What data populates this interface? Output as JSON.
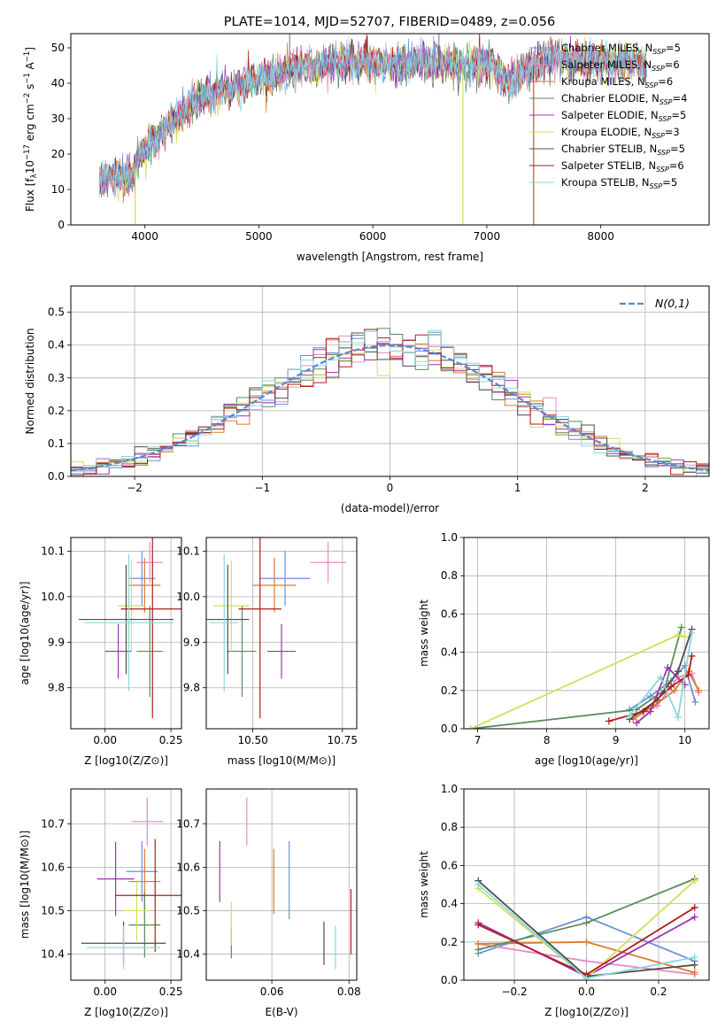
{
  "colors": [
    "#6a8fd6",
    "#e68cc2",
    "#df7a2b",
    "#5a8a5a",
    "#9b33b0",
    "#cfe05a",
    "#4d4d4d",
    "#b01c1c",
    "#8ad6dd"
  ],
  "legend_labels": {
    "main": [
      "Chabrier MILES, N",
      "Salpeter MILES, N",
      "Kroupa MILES, N",
      "Chabrier ELODIE, N",
      "Salpeter ELODIE, N",
      "Kroupa ELODIE, N",
      "Chabrier STELIB, N",
      "Salpeter STELIB, N",
      "Kroupa STELIB, N"
    ],
    "sub": [
      "SSP",
      "SSP",
      "SSP",
      "SSP",
      "SSP",
      "SSP",
      "SSP",
      "SSP",
      "SSP"
    ],
    "tail": [
      "=5",
      "=6",
      "=6",
      "=4",
      "=5",
      "=3",
      "=5",
      "=6",
      "=5"
    ]
  },
  "chart_data": [
    {
      "id": "spectrum",
      "type": "line",
      "title": "PLATE=1014, MJD=52707, FIBERID=0489, z=0.056",
      "xlabel": "wavelength [Angstrom, rest frame]",
      "ylabel_parts": [
        "Flux [f",
        "λ",
        "10",
        "−17",
        " erg cm",
        "−2",
        " s",
        "−1",
        " A",
        "−1",
        "]"
      ],
      "xlim": [
        3350,
        8950
      ],
      "ylim": [
        0,
        54
      ],
      "xticks": [
        4000,
        5000,
        6000,
        7000,
        8000
      ],
      "yticks": [
        0,
        10,
        20,
        30,
        40,
        50
      ],
      "wavelength_range": [
        3600,
        8400
      ],
      "flux_shape": [
        [
          3600,
          12
        ],
        [
          3700,
          14
        ],
        [
          3800,
          13
        ],
        [
          3900,
          14
        ],
        [
          3950,
          20
        ],
        [
          4000,
          21
        ],
        [
          4100,
          25
        ],
        [
          4200,
          28
        ],
        [
          4300,
          30
        ],
        [
          4400,
          34
        ],
        [
          4500,
          36
        ],
        [
          4600,
          37
        ],
        [
          4800,
          39
        ],
        [
          5000,
          41
        ],
        [
          5200,
          43
        ],
        [
          5400,
          45
        ],
        [
          5600,
          45
        ],
        [
          5800,
          46
        ],
        [
          6000,
          46
        ],
        [
          6200,
          45
        ],
        [
          6400,
          46
        ],
        [
          6600,
          46
        ],
        [
          6800,
          45
        ],
        [
          7000,
          46
        ],
        [
          7200,
          40
        ],
        [
          7400,
          45
        ],
        [
          7600,
          47
        ],
        [
          7800,
          46
        ],
        [
          8000,
          46
        ],
        [
          8200,
          46
        ],
        [
          8400,
          45
        ]
      ]
    },
    {
      "id": "residuals",
      "type": "histogram",
      "xlabel": "(data-model)/error",
      "ylabel": "Normed distribution",
      "xlim": [
        -2.5,
        2.5
      ],
      "ylim": [
        0,
        0.58
      ],
      "xticks": [
        -2,
        -1,
        0,
        1,
        2
      ],
      "yticks": [
        0.0,
        0.1,
        0.2,
        0.3,
        0.4,
        0.5
      ],
      "legend": "N(0,1)",
      "bin_width": 0.1
    },
    {
      "id": "age-vs-Z",
      "type": "scatter",
      "xlabel": "Z [log10(Z/Z⊙)]",
      "ylabel": "age  [log10(age/yr)]",
      "xlim": [
        -0.13,
        0.29
      ],
      "ylim": [
        9.71,
        10.13
      ],
      "xticks": [
        0.0,
        0.25
      ],
      "yticks": [
        9.8,
        9.9,
        10.0,
        10.1
      ],
      "points": [
        {
          "x": 0.14,
          "y": 10.04,
          "xerr": 0.05,
          "yerr": 0.06
        },
        {
          "x": 0.17,
          "y": 10.075,
          "xerr": 0.05,
          "yerr": 0.045
        },
        {
          "x": 0.15,
          "y": 10.025,
          "xerr": 0.06,
          "yerr": 0.06
        },
        {
          "x": 0.17,
          "y": 9.88,
          "xerr": 0.05,
          "yerr": 0.1
        },
        {
          "x": 0.05,
          "y": 9.88,
          "xerr": 0.05,
          "yerr": 0.06
        },
        {
          "x": 0.1,
          "y": 9.98,
          "xerr": 0.05,
          "yerr": 0.1
        },
        {
          "x": 0.08,
          "y": 9.95,
          "xerr": 0.18,
          "yerr": 0.12
        },
        {
          "x": 0.18,
          "y": 9.973,
          "xerr": 0.12,
          "yerr": 0.24
        },
        {
          "x": 0.09,
          "y": 9.943,
          "xerr": 0.17,
          "yerr": 0.15
        }
      ]
    },
    {
      "id": "age-vs-mass",
      "type": "scatter",
      "xlabel": "mass [log10(M/M⊙)]",
      "ylabel": "",
      "xlim": [
        10.37,
        10.79
      ],
      "ylim": [
        9.71,
        10.13
      ],
      "xticks": [
        10.5,
        10.75
      ],
      "yticks": [
        9.8,
        9.9,
        10.0,
        10.1
      ],
      "points": [
        {
          "x": 10.59,
          "y": 10.04,
          "yerr": 0.06,
          "xerr": 0.07
        },
        {
          "x": 10.71,
          "y": 10.075,
          "yerr": 0.045,
          "xerr": 0.05
        },
        {
          "x": 10.56,
          "y": 10.025,
          "yerr": 0.06,
          "xerr": 0.06
        },
        {
          "x": 10.47,
          "y": 9.88,
          "yerr": 0.1,
          "xerr": 0.04
        },
        {
          "x": 10.58,
          "y": 9.88,
          "yerr": 0.06,
          "xerr": 0.04
        },
        {
          "x": 10.44,
          "y": 9.98,
          "yerr": 0.1,
          "xerr": 0.05
        },
        {
          "x": 10.43,
          "y": 9.95,
          "yerr": 0.12,
          "xerr": 0.06
        },
        {
          "x": 10.52,
          "y": 9.973,
          "yerr": 0.24,
          "xerr": 0.06
        },
        {
          "x": 10.42,
          "y": 9.943,
          "yerr": 0.15,
          "xerr": 0.04
        }
      ]
    },
    {
      "id": "mass-weight-vs-age",
      "type": "line",
      "xlabel": "age  [log10(age/yr)]",
      "ylabel": "mass weight",
      "xlim": [
        6.8,
        10.35
      ],
      "ylim": [
        0,
        1.0
      ],
      "xticks": [
        7,
        8,
        9,
        10
      ],
      "yticks": [
        0.0,
        0.2,
        0.4,
        0.6,
        0.8,
        1.0
      ],
      "series": [
        {
          "x": [
            9.2,
            9.5,
            9.8,
            10.0,
            10.15
          ],
          "y": [
            0.1,
            0.17,
            0.25,
            0.33,
            0.14
          ]
        },
        {
          "x": [
            9.3,
            9.6,
            9.9,
            10.1,
            10.2
          ],
          "y": [
            0.08,
            0.12,
            0.27,
            0.29,
            0.19
          ]
        },
        {
          "x": [
            9.25,
            9.55,
            9.85,
            10.05,
            10.2
          ],
          "y": [
            0.05,
            0.12,
            0.2,
            0.3,
            0.2
          ]
        },
        {
          "x": [
            6.9,
            9.3,
            9.7,
            9.95
          ],
          "y": [
            0.0,
            0.1,
            0.2,
            0.53
          ]
        },
        {
          "x": [
            9.3,
            9.5,
            9.75,
            10.0
          ],
          "y": [
            0.03,
            0.09,
            0.32,
            0.23
          ]
        },
        {
          "x": [
            6.9,
            9.9,
            10.0
          ],
          "y": [
            0.0,
            0.49,
            0.48
          ]
        },
        {
          "x": [
            9.2,
            9.6,
            9.9,
            10.1
          ],
          "y": [
            0.05,
            0.15,
            0.3,
            0.52
          ]
        },
        {
          "x": [
            8.9,
            9.4,
            9.8,
            10.05,
            10.1
          ],
          "y": [
            0.04,
            0.09,
            0.22,
            0.28,
            0.38
          ]
        },
        {
          "x": [
            9.2,
            9.65,
            9.9,
            10.1
          ],
          "y": [
            0.07,
            0.27,
            0.06,
            0.5
          ]
        }
      ]
    },
    {
      "id": "mass-vs-Z",
      "type": "scatter",
      "xlabel": "Z [log10(Z/Z⊙)]",
      "ylabel": "mass [log10(M/M⊙)]",
      "xlim": [
        -0.13,
        0.29
      ],
      "ylim": [
        10.34,
        10.78
      ],
      "xticks": [
        0.0,
        0.25
      ],
      "yticks": [
        10.4,
        10.5,
        10.6,
        10.7
      ],
      "points": [
        {
          "x": 0.14,
          "y": 10.59,
          "xerr": 0.06,
          "yerr": 0.07
        },
        {
          "x": 0.16,
          "y": 10.705,
          "xerr": 0.06,
          "yerr": 0.055
        },
        {
          "x": 0.15,
          "y": 10.567,
          "xerr": 0.06,
          "yerr": 0.075
        },
        {
          "x": 0.15,
          "y": 10.467,
          "xerr": 0.06,
          "yerr": 0.075
        },
        {
          "x": 0.04,
          "y": 10.573,
          "xerr": 0.07,
          "yerr": 0.085
        },
        {
          "x": 0.12,
          "y": 10.5,
          "xerr": 0.05,
          "yerr": 0.07
        },
        {
          "x": 0.07,
          "y": 10.425,
          "xerr": 0.16,
          "yerr": 0.05
        },
        {
          "x": 0.19,
          "y": 10.535,
          "xerr": 0.15,
          "yerr": 0.13
        },
        {
          "x": 0.07,
          "y": 10.415,
          "xerr": 0.14,
          "yerr": 0.05
        }
      ]
    },
    {
      "id": "mass-vs-EBV",
      "type": "scatter",
      "xlabel": "E(B-V)",
      "ylabel": "",
      "xlim": [
        0.043,
        0.082
      ],
      "ylim": [
        10.34,
        10.78
      ],
      "xticks": [
        0.06,
        0.08
      ],
      "yticks": [
        10.4,
        10.5,
        10.6,
        10.7
      ],
      "points": [
        {
          "x": 0.0645,
          "y": 10.57,
          "yerr": 0.09
        },
        {
          "x": 0.0535,
          "y": 10.705,
          "yerr": 0.055
        },
        {
          "x": 0.0605,
          "y": 10.567,
          "yerr": 0.075
        },
        {
          "x": 0.0495,
          "y": 10.425,
          "yerr": 0.035
        },
        {
          "x": 0.0465,
          "y": 10.59,
          "yerr": 0.07
        },
        {
          "x": 0.0495,
          "y": 10.47,
          "yerr": 0.05
        },
        {
          "x": 0.0735,
          "y": 10.425,
          "yerr": 0.05
        },
        {
          "x": 0.0805,
          "y": 10.475,
          "yerr": 0.075
        },
        {
          "x": 0.0765,
          "y": 10.415,
          "yerr": 0.05
        }
      ]
    },
    {
      "id": "mass-weight-vs-Z",
      "type": "line",
      "xlabel": "Z [log10(Z/Z⊙)]",
      "ylabel": "mass weight",
      "xlim": [
        -0.34,
        0.34
      ],
      "ylim": [
        0,
        1.0
      ],
      "xticks": [
        -0.2,
        0.0,
        0.2
      ],
      "yticks": [
        0.0,
        0.2,
        0.4,
        0.6,
        0.8,
        1.0
      ],
      "series": [
        {
          "x": [
            -0.3,
            0.0,
            0.3
          ],
          "y": [
            0.14,
            0.33,
            0.1
          ]
        },
        {
          "x": [
            -0.3,
            0.0,
            0.3
          ],
          "y": [
            0.19,
            0.1,
            0.03
          ]
        },
        {
          "x": [
            -0.3,
            0.0,
            0.3
          ],
          "y": [
            0.19,
            0.2,
            0.04
          ]
        },
        {
          "x": [
            -0.3,
            0.0,
            0.3
          ],
          "y": [
            0.16,
            0.3,
            0.53
          ]
        },
        {
          "x": [
            -0.3,
            0.0,
            0.3
          ],
          "y": [
            0.3,
            0.02,
            0.33
          ]
        },
        {
          "x": [
            -0.3,
            0.0,
            0.3
          ],
          "y": [
            0.48,
            0.01,
            0.52
          ]
        },
        {
          "x": [
            -0.3,
            0.0,
            0.3
          ],
          "y": [
            0.52,
            0.02,
            0.08
          ]
        },
        {
          "x": [
            -0.3,
            0.0,
            0.3
          ],
          "y": [
            0.29,
            0.03,
            0.38
          ]
        },
        {
          "x": [
            -0.3,
            0.0,
            0.3
          ],
          "y": [
            0.5,
            0.01,
            0.12
          ]
        }
      ]
    }
  ]
}
